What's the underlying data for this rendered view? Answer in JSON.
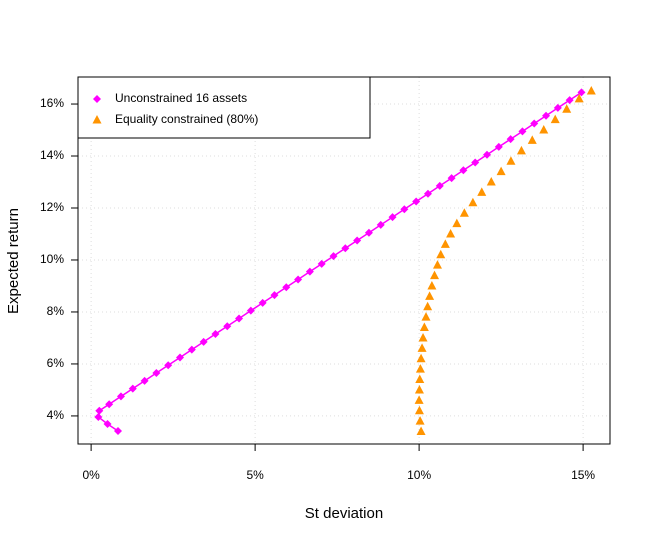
{
  "chart_data": {
    "type": "scatter",
    "x_label": "St deviation",
    "y_label": "Expected return",
    "xlim": [
      -0.4,
      15.82
    ],
    "ylim": [
      2.92,
      17.04
    ],
    "xticks": [
      {
        "value": 0,
        "label": "0%"
      },
      {
        "value": 5,
        "label": "5%"
      },
      {
        "value": 10,
        "label": "10%"
      },
      {
        "value": 15,
        "label": "15%"
      }
    ],
    "yticks": [
      {
        "value": 4,
        "label": "4%"
      },
      {
        "value": 6,
        "label": "6%"
      },
      {
        "value": 8,
        "label": "8%"
      },
      {
        "value": 10,
        "label": "10%"
      },
      {
        "value": 12,
        "label": "12%"
      },
      {
        "value": 14,
        "label": "14%"
      },
      {
        "value": 16,
        "label": "16%"
      }
    ],
    "grid": true,
    "legend_position": "topleft",
    "series": [
      {
        "name": "Unconstrained 16 assets",
        "color": "#ff00ff",
        "marker": "diamond",
        "line": true,
        "x": [
          0.82,
          0.5,
          0.22,
          0.25,
          0.55,
          0.91,
          1.27,
          1.63,
          1.99,
          2.35,
          2.71,
          3.07,
          3.43,
          3.79,
          4.15,
          4.51,
          4.87,
          5.23,
          5.59,
          5.95,
          6.31,
          6.67,
          7.03,
          7.39,
          7.75,
          8.11,
          8.47,
          8.83,
          9.19,
          9.55,
          9.91,
          10.27,
          10.63,
          10.99,
          11.35,
          11.71,
          12.07,
          12.43,
          12.79,
          13.15,
          13.51,
          13.87,
          14.23,
          14.59,
          14.95
        ],
        "values": [
          3.42,
          3.69,
          3.96,
          4.2,
          4.45,
          4.75,
          5.05,
          5.35,
          5.65,
          5.95,
          6.25,
          6.55,
          6.85,
          7.15,
          7.45,
          7.75,
          8.05,
          8.35,
          8.65,
          8.95,
          9.25,
          9.55,
          9.85,
          10.15,
          10.45,
          10.75,
          11.05,
          11.35,
          11.65,
          11.95,
          12.25,
          12.55,
          12.85,
          13.15,
          13.45,
          13.75,
          14.05,
          14.35,
          14.65,
          14.95,
          15.25,
          15.55,
          15.85,
          16.15,
          16.45
        ]
      },
      {
        "name": "Equality constrained (80%)",
        "color": "#ff9400",
        "marker": "triangle",
        "line": false,
        "x": [
          10.06,
          10.03,
          10.01,
          10.0,
          10.01,
          10.02,
          10.04,
          10.06,
          10.09,
          10.12,
          10.16,
          10.21,
          10.26,
          10.32,
          10.39,
          10.47,
          10.56,
          10.66,
          10.8,
          10.96,
          11.15,
          11.38,
          11.64,
          11.91,
          12.2,
          12.5,
          12.8,
          13.12,
          13.45,
          13.8,
          14.15,
          14.5,
          14.88,
          15.25
        ],
        "values": [
          3.4,
          3.8,
          4.2,
          4.6,
          5.0,
          5.4,
          5.8,
          6.2,
          6.6,
          7.0,
          7.4,
          7.8,
          8.2,
          8.6,
          9.0,
          9.4,
          9.8,
          10.2,
          10.6,
          11.0,
          11.4,
          11.8,
          12.2,
          12.6,
          13.0,
          13.4,
          13.8,
          14.2,
          14.6,
          15.0,
          15.4,
          15.8,
          16.2,
          16.5
        ]
      }
    ]
  }
}
